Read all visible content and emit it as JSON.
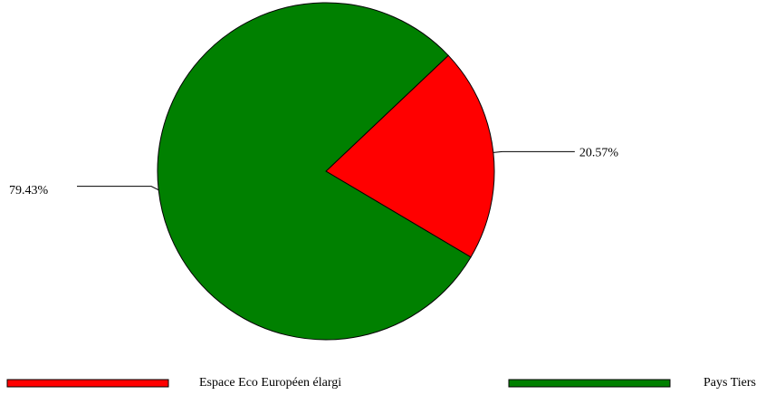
{
  "chart_data": {
    "type": "pie",
    "categories": [
      "Espace Eco Européen élargi",
      "Pays Tiers"
    ],
    "values": [
      20.57,
      79.43
    ],
    "value_labels": [
      "20.57%",
      "79.43%"
    ],
    "colors": [
      "#ff0000",
      "#008000"
    ],
    "legend": "bottom"
  }
}
